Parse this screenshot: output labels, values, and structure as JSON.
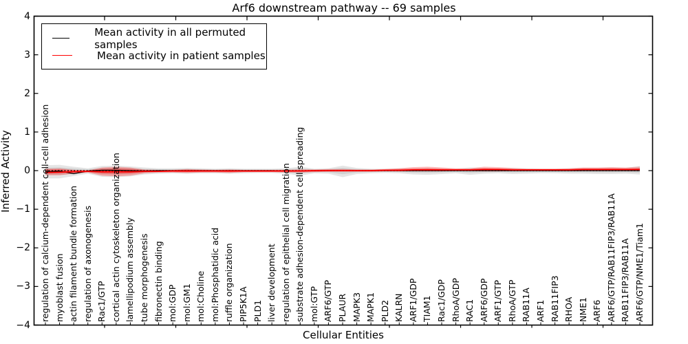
{
  "title": "Arf6 downstream pathway -- 69 samples",
  "legend": {
    "items": [
      {
        "label": "Mean activity in all permuted samples",
        "color": "#000000"
      },
      {
        "label": "Mean activity in patient samples",
        "color": "#ff0000"
      }
    ]
  },
  "colors": {
    "permuted_line": "#000000",
    "patient_line": "#ff0000",
    "permuted_band": "#999999",
    "patient_band": "#ff0000",
    "frame": "#000000",
    "background": "#ffffff"
  },
  "chart_data": {
    "type": "line",
    "title": "Arf6 downstream pathway -- 69 samples",
    "xlabel": "Cellular Entities",
    "ylabel": "Inferred Activity",
    "ylim": [
      -4,
      4
    ],
    "yticks": [
      4,
      3,
      2,
      1,
      0,
      -1,
      -2,
      -3,
      -4
    ],
    "grid": false,
    "legend_position": "upper left",
    "zero_reference_line": 0,
    "categories": [
      "regulation of calcium-dependent cell-cell adhesion",
      "myoblast fusion",
      "actin filament bundle formation",
      "regulation of axonogenesis",
      "Rac1/GTP",
      "cortical actin cytoskeleton organization",
      "lamellipodium assembly",
      "tube morphogenesis",
      "fibronectin binding",
      "mol:GDP",
      "mol:GM1",
      "mol:Choline",
      "mol:Phosphatidic acid",
      "ruffle organization",
      "PIP5K1A",
      "PLD1",
      "liver development",
      "regulation of epithelial cell migration",
      "substrate adhesion-dependent cell spreading",
      "mol:GTP",
      "ARF6/GTP",
      "PLAUR",
      "MAPK3",
      "MAPK1",
      "PLD2",
      "KALRN",
      "ARF1/GDP",
      "TIAM1",
      "Rac1/GDP",
      "RhoA/GDP",
      "RAC1",
      "ARF6/GDP",
      "ARF1/GTP",
      "RhoA/GTP",
      "RAB11A",
      "ARF1",
      "RAB11FIP3",
      "RHOA",
      "NME1",
      "ARF6",
      "ARF6/GTP/RAB11FIP3/RAB11A",
      "RAB11FIP3/RAB11A",
      "ARF6/GTP/NME1/Tiam1"
    ],
    "series": [
      {
        "name": "Mean activity in all permuted samples",
        "color": "#000000",
        "values": [
          -0.03,
          -0.01,
          -0.08,
          -0.01,
          0.01,
          0.01,
          0,
          -0.01,
          0,
          0,
          0,
          0,
          0,
          0,
          0,
          0,
          0,
          -0.01,
          -0.01,
          0,
          0,
          0,
          0,
          0,
          0,
          0,
          0,
          0,
          0,
          0,
          0,
          0,
          0,
          0,
          0,
          0,
          0,
          0,
          0,
          0,
          0,
          0,
          0
        ],
        "band_upper": [
          0.14,
          0.15,
          0.1,
          0.06,
          0.12,
          0.13,
          0.11,
          0.08,
          0.06,
          0.06,
          0.07,
          0.06,
          0.05,
          0.06,
          0.05,
          0.05,
          0.05,
          0.06,
          0.1,
          0.05,
          0.06,
          0.13,
          0.07,
          0.05,
          0.05,
          0.06,
          0.06,
          0.07,
          0.06,
          0.05,
          0.08,
          0.07,
          0.06,
          0.07,
          0.06,
          0.05,
          0.05,
          0.06,
          0.07,
          0.07,
          0.08,
          0.07,
          0.12
        ],
        "band_lower": [
          -0.2,
          -0.2,
          -0.14,
          -0.08,
          -0.16,
          -0.17,
          -0.15,
          -0.1,
          -0.08,
          -0.07,
          -0.08,
          -0.07,
          -0.07,
          -0.08,
          -0.07,
          -0.06,
          -0.06,
          -0.08,
          -0.13,
          -0.07,
          -0.08,
          -0.17,
          -0.09,
          -0.07,
          -0.06,
          -0.07,
          -0.1,
          -0.11,
          -0.09,
          -0.07,
          -0.11,
          -0.08,
          -0.07,
          -0.09,
          -0.08,
          -0.07,
          -0.07,
          -0.08,
          -0.08,
          -0.09,
          -0.09,
          -0.08,
          -0.1
        ]
      },
      {
        "name": "Mean activity in patient samples",
        "color": "#ff0000",
        "values": [
          -0.05,
          -0.04,
          -0.03,
          -0.02,
          -0.03,
          -0.03,
          -0.03,
          -0.02,
          -0.02,
          -0.01,
          -0.01,
          -0.01,
          -0.01,
          -0.01,
          -0.01,
          -0.01,
          -0.01,
          -0.01,
          -0.01,
          0,
          0,
          0,
          0,
          0,
          0.01,
          0.01,
          0.02,
          0.02,
          0.02,
          0.02,
          0.02,
          0.03,
          0.03,
          0.02,
          0.02,
          0.02,
          0.02,
          0.02,
          0.03,
          0.03,
          0.03,
          0.03,
          0.03
        ],
        "band_upper": [
          0.05,
          0.06,
          0.02,
          0.01,
          0.08,
          0.1,
          0.08,
          0.03,
          0.02,
          0.02,
          0.04,
          0.03,
          0.02,
          0.03,
          0.02,
          0.02,
          0.02,
          0.02,
          0.03,
          0.03,
          0.04,
          0.04,
          0.03,
          0.03,
          0.04,
          0.06,
          0.09,
          0.1,
          0.08,
          0.06,
          0.06,
          0.1,
          0.09,
          0.07,
          0.05,
          0.05,
          0.05,
          0.06,
          0.08,
          0.08,
          0.09,
          0.08,
          0.1
        ],
        "band_lower": [
          -0.12,
          -0.12,
          -0.08,
          -0.05,
          -0.13,
          -0.15,
          -0.13,
          -0.07,
          -0.05,
          -0.05,
          -0.06,
          -0.05,
          -0.05,
          -0.06,
          -0.04,
          -0.04,
          -0.04,
          -0.05,
          -0.05,
          -0.04,
          -0.03,
          -0.03,
          -0.03,
          -0.03,
          -0.02,
          -0.02,
          -0.02,
          -0.02,
          -0.02,
          -0.01,
          -0.01,
          -0.02,
          -0.02,
          -0.01,
          0,
          0,
          0,
          0,
          0,
          0,
          0,
          0,
          -0.01
        ]
      }
    ]
  }
}
